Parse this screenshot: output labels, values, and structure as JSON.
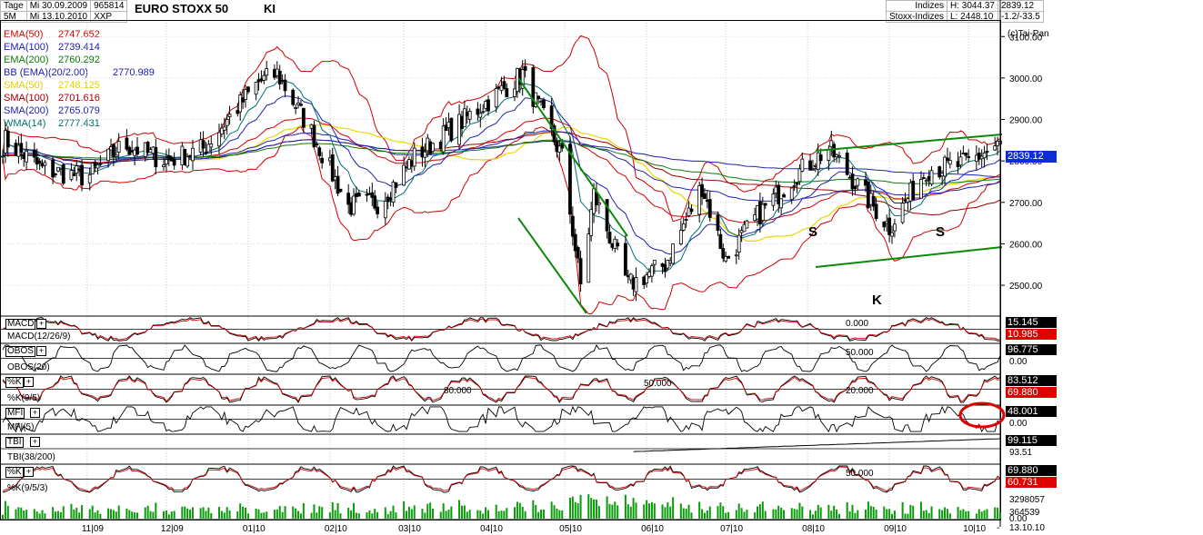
{
  "header": {
    "period_label": "Tage",
    "bars_label": "5M",
    "date_from": "Mi 30.09.2009",
    "date_to": "Mi 13.10.2010",
    "code": "965814",
    "exchange": "XXP",
    "instrument": "EURO STOXX 50",
    "marker": "KI",
    "category": "Indizes",
    "subcategory": "Stoxx-Indizes",
    "high": "H: 3044.37",
    "low": "L: 2448.10",
    "last": "2839.12",
    "change": "-1.2/-33.5",
    "copyright": "(c)Tai-Pan"
  },
  "legend": [
    {
      "name": "EMA(50)",
      "value": "2747.652",
      "color": "#d00000"
    },
    {
      "name": "EMA(100)",
      "value": "2739.414",
      "color": "#2020b0"
    },
    {
      "name": "EMA(200)",
      "value": "2760.292",
      "color": "#0a7a0a"
    },
    {
      "name": "BB (EMA)(20/2.00)",
      "value": "2770.989",
      "color": "#2020b0"
    },
    {
      "name": "SMA(50)",
      "value": "2748.125",
      "color": "#e0d000"
    },
    {
      "name": "SMA(100)",
      "value": "2701.616",
      "color": "#a00000"
    },
    {
      "name": "SMA(200)",
      "value": "2765.079",
      "color": "#2020b0"
    },
    {
      "name": "WMA(14)",
      "value": "2777.431",
      "color": "#007070"
    }
  ],
  "annotations": {
    "s_left": "S",
    "s_right": "S",
    "k": "K"
  },
  "price_badge": "2839.12",
  "panels": [
    {
      "name": "MACD",
      "label": "MACD(12/26/9)",
      "level": "0.000",
      "badge1": "15.145",
      "badge1_color": "#000000",
      "badge2": "10.985",
      "badge2_color": "#e00000",
      "extra": ""
    },
    {
      "name": "OBOS",
      "label": "OBOS(20)",
      "level": "50.000",
      "badge1": "96.775",
      "badge1_color": "#000000",
      "badge2": "",
      "badge2_color": "",
      "extra": "0.00"
    },
    {
      "name": "%K",
      "label": "%K(9/5)",
      "level": "50.000",
      "badge1": "83.512",
      "badge1_color": "#000000",
      "badge2": "69.880",
      "badge2_color": "#e00000",
      "extra": "",
      "level_hi": "80.000",
      "level_lo": "20.000"
    },
    {
      "name": "MFI",
      "label": "MFI(5)",
      "level": "",
      "badge1": "48.001",
      "badge1_color": "#000000",
      "badge2": "",
      "badge2_color": "",
      "extra": "0.00"
    },
    {
      "name": "TBI",
      "label": "TBI(38/200)",
      "level": "",
      "badge1": "99.115",
      "badge1_color": "#000000",
      "badge2": "",
      "badge2_color": "",
      "extra": "93.51"
    },
    {
      "name": "%K",
      "label": "%K(9/5/3)",
      "level": "50.000",
      "badge1": "69.880",
      "badge1_color": "#000000",
      "badge2": "60.731",
      "badge2_color": "#e00000",
      "extra": ""
    }
  ],
  "volume_labels": [
    "3298057",
    "364539",
    "0.00"
  ],
  "x_date_label": "13.10.10",
  "x_last_tick": "-",
  "chart_data": {
    "type": "candlestick",
    "title": "EURO STOXX 50",
    "x_ticks": [
      "11|09",
      "12|09",
      "01|10",
      "02|10",
      "03|10",
      "04|10",
      "05|10",
      "06|10",
      "07|10",
      "08|10",
      "09|10",
      "10|10"
    ],
    "y_ticks": [
      "3100.00",
      "3000.00",
      "2900.00",
      "2800.00",
      "2700.00",
      "2600.00",
      "2500.00"
    ],
    "ylim": [
      2430,
      3140
    ],
    "close_points": [
      {
        "date": "2009-10-01",
        "close": 2850
      },
      {
        "date": "2009-10-15",
        "close": 2780
      },
      {
        "date": "2009-11-01",
        "close": 2760
      },
      {
        "date": "2009-11-15",
        "close": 2840
      },
      {
        "date": "2009-12-01",
        "close": 2800
      },
      {
        "date": "2009-12-15",
        "close": 2830
      },
      {
        "date": "2010-01-05",
        "close": 2990
      },
      {
        "date": "2010-01-12",
        "close": 3010
      },
      {
        "date": "2010-01-25",
        "close": 2870
      },
      {
        "date": "2010-02-08",
        "close": 2690
      },
      {
        "date": "2010-02-20",
        "close": 2700
      },
      {
        "date": "2010-03-05",
        "close": 2810
      },
      {
        "date": "2010-03-20",
        "close": 2880
      },
      {
        "date": "2010-04-05",
        "close": 2960
      },
      {
        "date": "2010-04-15",
        "close": 3010
      },
      {
        "date": "2010-04-30",
        "close": 2810
      },
      {
        "date": "2010-05-07",
        "close": 2500
      },
      {
        "date": "2010-05-12",
        "close": 2720
      },
      {
        "date": "2010-05-25",
        "close": 2500
      },
      {
        "date": "2010-06-08",
        "close": 2550
      },
      {
        "date": "2010-06-22",
        "close": 2740
      },
      {
        "date": "2010-07-01",
        "close": 2560
      },
      {
        "date": "2010-07-12",
        "close": 2660
      },
      {
        "date": "2010-07-28",
        "close": 2770
      },
      {
        "date": "2010-08-09",
        "close": 2830
      },
      {
        "date": "2010-08-20",
        "close": 2740
      },
      {
        "date": "2010-09-01",
        "close": 2640
      },
      {
        "date": "2010-09-15",
        "close": 2780
      },
      {
        "date": "2010-09-28",
        "close": 2790
      },
      {
        "date": "2010-10-13",
        "close": 2839
      }
    ],
    "grid": true,
    "volume_ylim": [
      0,
      3298057
    ]
  }
}
